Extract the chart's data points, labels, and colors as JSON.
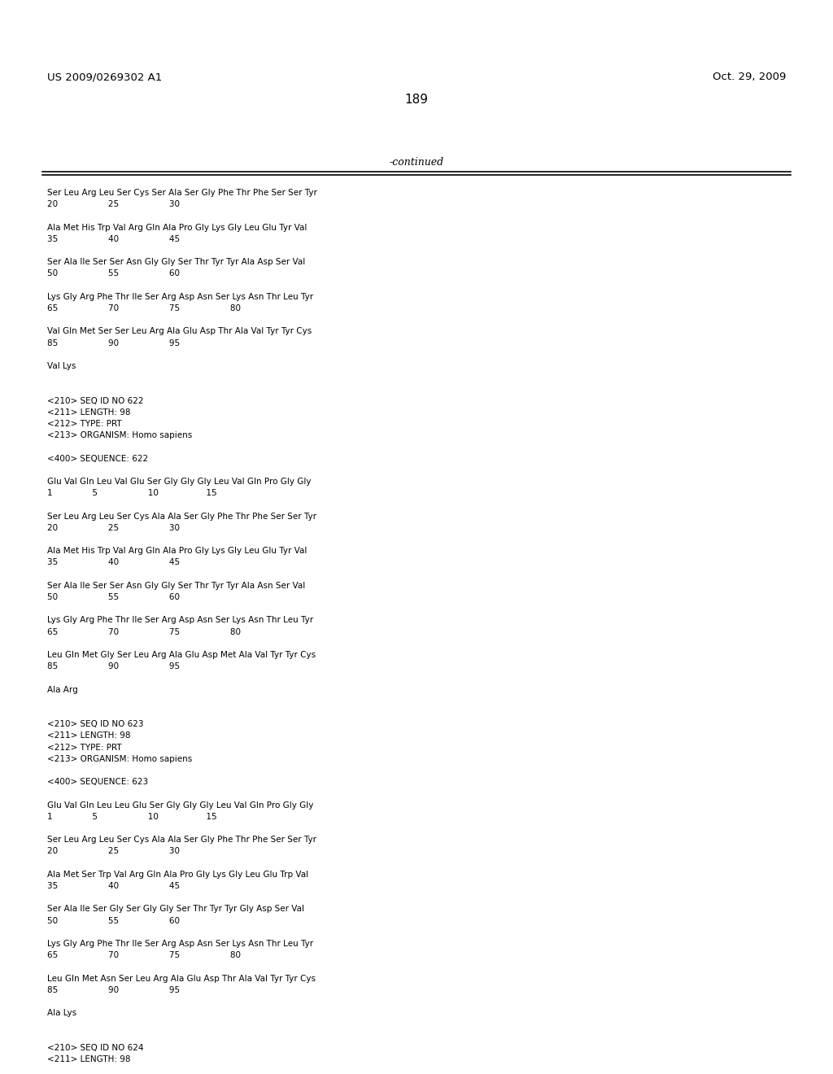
{
  "header_left": "US 2009/0269302 A1",
  "header_right": "Oct. 29, 2009",
  "page_number": "189",
  "continued_label": "-continued",
  "background_color": "#ffffff",
  "text_color": "#000000",
  "header_fontsize": 9.5,
  "page_num_fontsize": 11,
  "continued_fontsize": 9,
  "mono_font_size": 7.5,
  "content_lines": [
    "Ser Leu Arg Leu Ser Cys Ser Ala Ser Gly Phe Thr Phe Ser Ser Tyr",
    "20                   25                   30",
    "",
    "Ala Met His Trp Val Arg Gln Ala Pro Gly Lys Gly Leu Glu Tyr Val",
    "35                   40                   45",
    "",
    "Ser Ala Ile Ser Ser Asn Gly Gly Ser Thr Tyr Tyr Ala Asp Ser Val",
    "50                   55                   60",
    "",
    "Lys Gly Arg Phe Thr Ile Ser Arg Asp Asn Ser Lys Asn Thr Leu Tyr",
    "65                   70                   75                   80",
    "",
    "Val Gln Met Ser Ser Leu Arg Ala Glu Asp Thr Ala Val Tyr Tyr Cys",
    "85                   90                   95",
    "",
    "Val Lys",
    "",
    "",
    "<210> SEQ ID NO 622",
    "<211> LENGTH: 98",
    "<212> TYPE: PRT",
    "<213> ORGANISM: Homo sapiens",
    "",
    "<400> SEQUENCE: 622",
    "",
    "Glu Val Gln Leu Val Glu Ser Gly Gly Gly Leu Val Gln Pro Gly Gly",
    "1               5                   10                  15",
    "",
    "Ser Leu Arg Leu Ser Cys Ala Ala Ser Gly Phe Thr Phe Ser Ser Tyr",
    "20                   25                   30",
    "",
    "Ala Met His Trp Val Arg Gln Ala Pro Gly Lys Gly Leu Glu Tyr Val",
    "35                   40                   45",
    "",
    "Ser Ala Ile Ser Ser Asn Gly Gly Ser Thr Tyr Tyr Ala Asn Ser Val",
    "50                   55                   60",
    "",
    "Lys Gly Arg Phe Thr Ile Ser Arg Asp Asn Ser Lys Asn Thr Leu Tyr",
    "65                   70                   75                   80",
    "",
    "Leu Gln Met Gly Ser Leu Arg Ala Glu Asp Met Ala Val Tyr Tyr Cys",
    "85                   90                   95",
    "",
    "Ala Arg",
    "",
    "",
    "<210> SEQ ID NO 623",
    "<211> LENGTH: 98",
    "<212> TYPE: PRT",
    "<213> ORGANISM: Homo sapiens",
    "",
    "<400> SEQUENCE: 623",
    "",
    "Glu Val Gln Leu Leu Glu Ser Gly Gly Gly Leu Val Gln Pro Gly Gly",
    "1               5                   10                  15",
    "",
    "Ser Leu Arg Leu Ser Cys Ala Ala Ser Gly Phe Thr Phe Ser Ser Tyr",
    "20                   25                   30",
    "",
    "Ala Met Ser Trp Val Arg Gln Ala Pro Gly Lys Gly Leu Glu Trp Val",
    "35                   40                   45",
    "",
    "Ser Ala Ile Ser Gly Ser Gly Gly Ser Thr Tyr Tyr Gly Asp Ser Val",
    "50                   55                   60",
    "",
    "Lys Gly Arg Phe Thr Ile Ser Arg Asp Asn Ser Lys Asn Thr Leu Tyr",
    "65                   70                   75                   80",
    "",
    "Leu Gln Met Asn Ser Leu Arg Ala Glu Asp Thr Ala Val Tyr Tyr Cys",
    "85                   90                   95",
    "",
    "Ala Lys",
    "",
    "",
    "<210> SEQ ID NO 624",
    "<211> LENGTH: 98"
  ]
}
